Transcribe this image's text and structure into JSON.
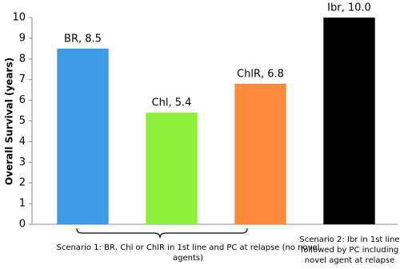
{
  "chart_data": {
    "type": "bar",
    "y_label": "Overall Survival (years)",
    "categories": [
      null,
      null,
      null,
      null
    ],
    "values": [
      8.5,
      5.4,
      6.8,
      10
    ],
    "value_labels": [
      "BR, 8.5",
      "Chl, 5.4",
      "ChlR, 6.8",
      "Ibr, 10.0"
    ],
    "colors": [
      "#3d9ae8",
      "#8ef03c",
      "#ff8a3d",
      "#000000"
    ],
    "ylim": [
      0,
      10
    ],
    "yticks": [
      0,
      1,
      2,
      3,
      4,
      5,
      6,
      7,
      8,
      9,
      10
    ],
    "grid": false,
    "annotations": [
      "Scenario 1: BR, Chl or ChlR in 1st line and PC at relapse (no novel agents)",
      "Scenario 2: Ibr in 1st line followed by PC including novel agent at relapse"
    ]
  }
}
